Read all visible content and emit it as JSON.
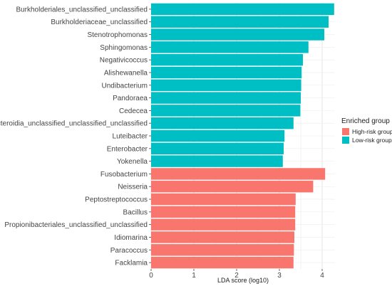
{
  "chart_data": {
    "type": "bar",
    "orientation": "horizontal",
    "title": "",
    "xlabel": "LDA score (log10)",
    "ylabel": "",
    "xlim": [
      0,
      4.3
    ],
    "xticks": [
      0,
      1,
      2,
      3,
      4
    ],
    "grid": true,
    "legend": {
      "title": "Enriched group",
      "position": "right",
      "entries": [
        {
          "name": "High-risk group",
          "color": "#F8766D"
        },
        {
          "name": "Low-risk group",
          "color": "#00BFC4"
        }
      ]
    },
    "bars": [
      {
        "category": "Burkholderiales_unclassified_unclassified",
        "value": 4.28,
        "group": "Low-risk group"
      },
      {
        "category": "Burkholderiaceae_unclassified",
        "value": 4.15,
        "group": "Low-risk group"
      },
      {
        "category": "Stenotrophomonas",
        "value": 4.05,
        "group": "Low-risk group"
      },
      {
        "category": "Sphingomonas",
        "value": 3.68,
        "group": "Low-risk group"
      },
      {
        "category": "Negativicoccus",
        "value": 3.55,
        "group": "Low-risk group"
      },
      {
        "category": "Alishewanella",
        "value": 3.52,
        "group": "Low-risk group"
      },
      {
        "category": "Undibacterium",
        "value": 3.51,
        "group": "Low-risk group"
      },
      {
        "category": "Pandoraea",
        "value": 3.5,
        "group": "Low-risk group"
      },
      {
        "category": "Cedecea",
        "value": 3.49,
        "group": "Low-risk group"
      },
      {
        "category": "Bacteroidia_unclassified_unclassified_unclassified",
        "value": 3.33,
        "group": "Low-risk group"
      },
      {
        "category": "Luteibacter",
        "value": 3.12,
        "group": "Low-risk group"
      },
      {
        "category": "Enterobacter",
        "value": 3.1,
        "group": "Low-risk group"
      },
      {
        "category": "Yokenella",
        "value": 3.08,
        "group": "Low-risk group"
      },
      {
        "category": "Fusobacterium",
        "value": 4.07,
        "group": "High-risk group"
      },
      {
        "category": "Neisseria",
        "value": 3.79,
        "group": "High-risk group"
      },
      {
        "category": "Peptostreptococcus",
        "value": 3.38,
        "group": "High-risk group"
      },
      {
        "category": "Bacillus",
        "value": 3.37,
        "group": "High-risk group"
      },
      {
        "category": "Propionibacteriales_unclassified_unclassified",
        "value": 3.37,
        "group": "High-risk group"
      },
      {
        "category": "Idiomarina",
        "value": 3.35,
        "group": "High-risk group"
      },
      {
        "category": "Paracoccus",
        "value": 3.34,
        "group": "High-risk group"
      },
      {
        "category": "Facklamia",
        "value": 3.33,
        "group": "High-risk group"
      }
    ]
  }
}
